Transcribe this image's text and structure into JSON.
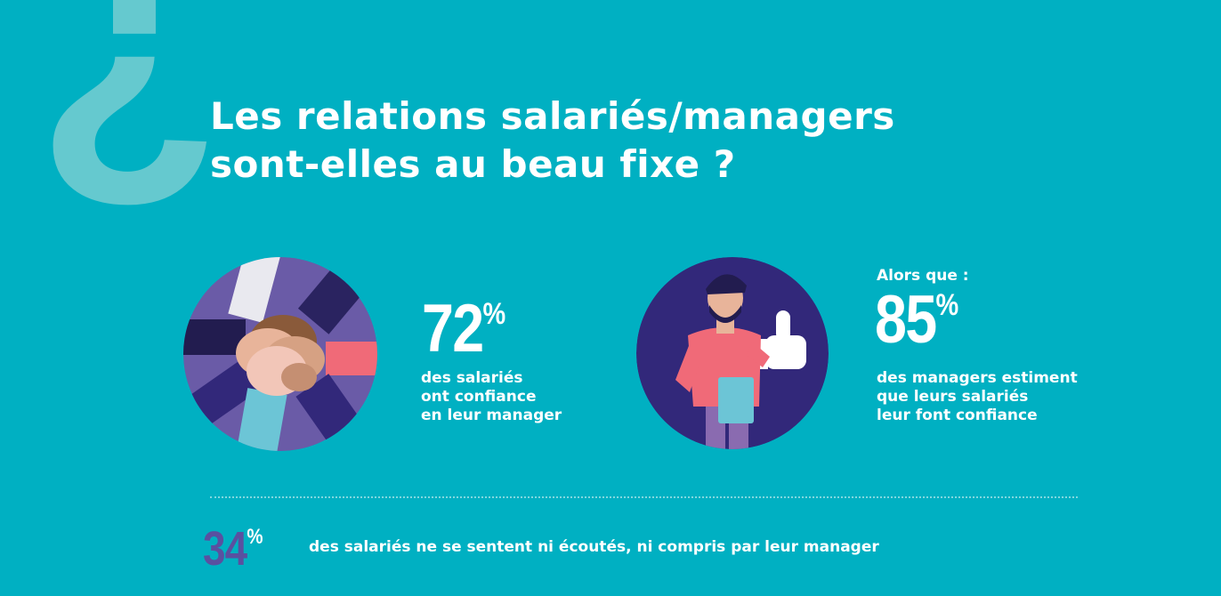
{
  "title_lines": [
    "Les relations salariés/managers",
    "sont-elles au beau fixe ?"
  ],
  "stat1": {
    "value": "72",
    "unit": "%",
    "lines": [
      "des salariés",
      "ont confiance",
      "en leur manager"
    ]
  },
  "stat2": {
    "intro": "Alors que :",
    "value": "85",
    "unit": "%",
    "lines": [
      "des managers estiment",
      "que leurs salariés",
      "leur font confiance"
    ]
  },
  "stat3": {
    "value": "34",
    "unit": "%",
    "text": "des salariés ne se sentent ni écoutés, ni compris par leur manager"
  },
  "icons": {
    "background": "inverted-question-mark-icon",
    "illustration1": "stacked-hands-icon",
    "illustration2": "man-thumbs-up-icon"
  },
  "colors": {
    "background": "#00b0c2",
    "question_mark": "#65c9cf",
    "circle_purple": "#6a5ba7",
    "circle_dark": "#32287a",
    "accent_pink": "#f06a78",
    "bottom_number": "#5a50a0",
    "text": "#ffffff"
  }
}
